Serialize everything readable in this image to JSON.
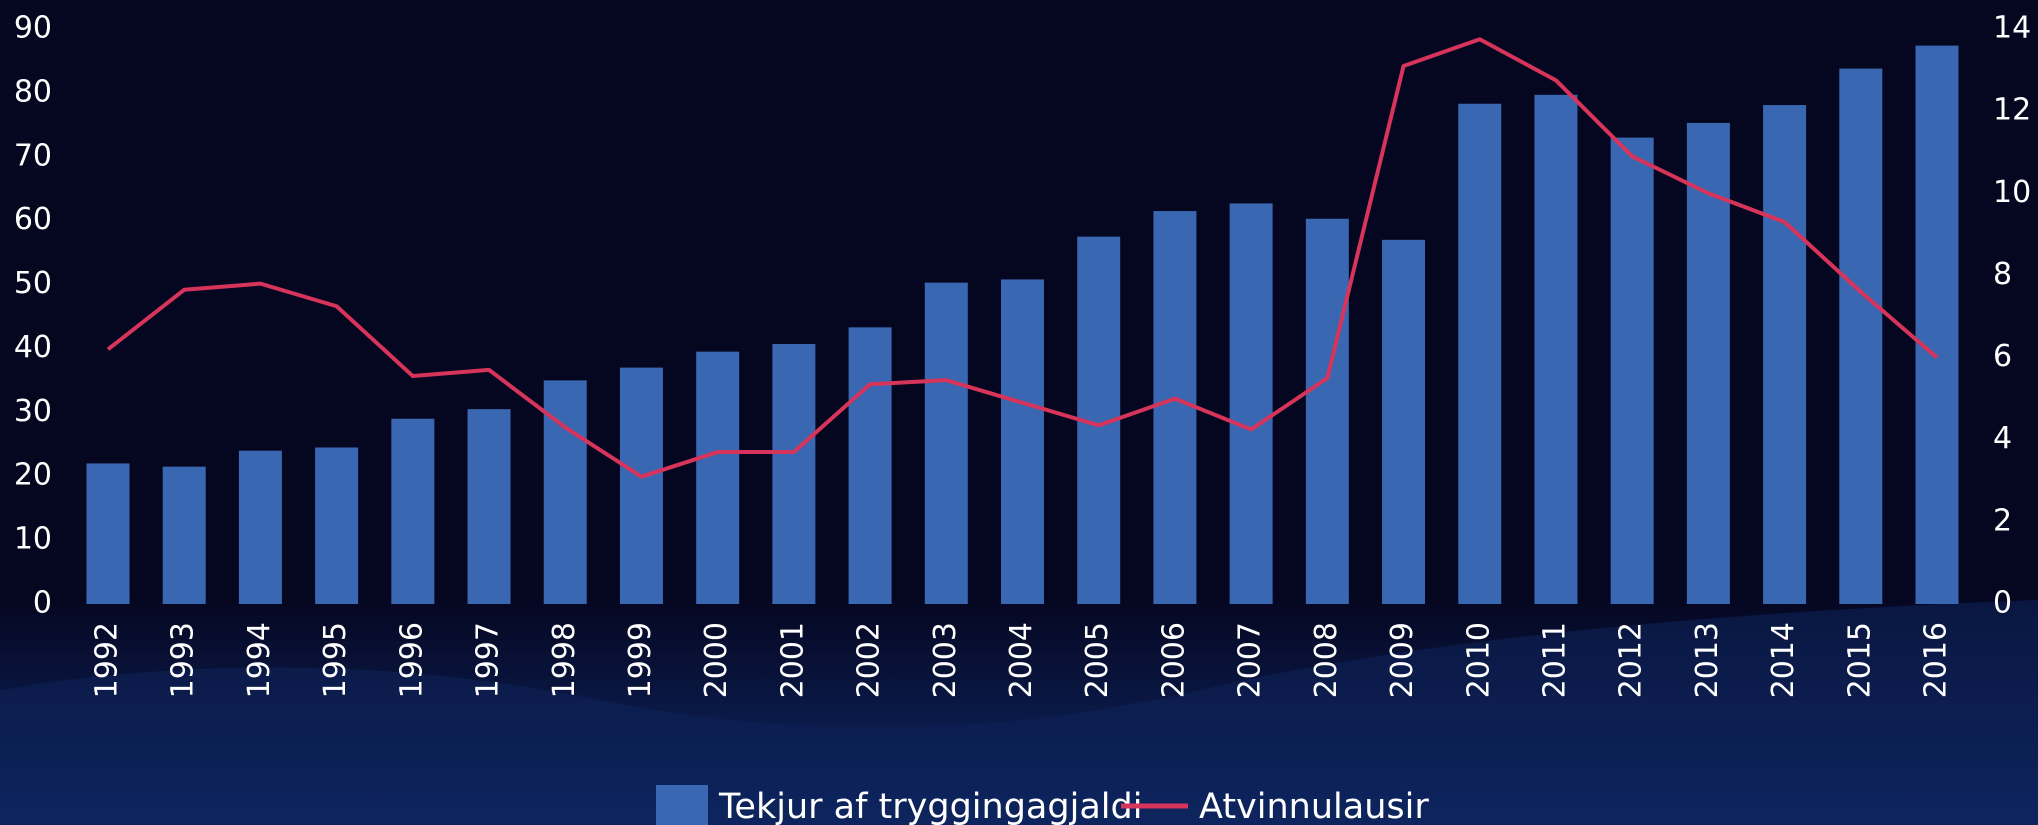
{
  "chart_data": {
    "type": "bar",
    "categories": [
      "1992",
      "1993",
      "1994",
      "1995",
      "1996",
      "1997",
      "1998",
      "1999",
      "2000",
      "2001",
      "2002",
      "2003",
      "2004",
      "2005",
      "2006",
      "2007",
      "2008",
      "2009",
      "2010",
      "2011",
      "2012",
      "2013",
      "2014",
      "2015",
      "2016"
    ],
    "series": [
      {
        "name": "Tekjur af tryggingagjaldi",
        "type": "bar",
        "color": "#3a67b2",
        "values": [
          22,
          21.5,
          24,
          24.5,
          29,
          30.5,
          35,
          37,
          39.5,
          40.7,
          43.3,
          50.3,
          50.8,
          57.5,
          61.5,
          62.7,
          60.3,
          57,
          78.3,
          79.7,
          73,
          75.3,
          78.1,
          83.8,
          87.4
        ]
      },
      {
        "name": "Atvinnulausir",
        "type": "line",
        "axis": "y2",
        "color": "#d6345a",
        "values": [
          6.2,
          7.65,
          7.8,
          7.25,
          5.55,
          5.7,
          4.3,
          3.1,
          3.7,
          3.7,
          5.35,
          5.45,
          4.9,
          4.35,
          5.0,
          4.25,
          5.5,
          13.1,
          13.75,
          12.75,
          10.9,
          10.0,
          9.3,
          7.6,
          6.0
        ]
      }
    ],
    "ylim": [
      0,
      90
    ],
    "yticks": [
      0,
      10,
      20,
      30,
      40,
      50,
      60,
      70,
      80,
      90
    ],
    "y2lim": [
      0,
      14
    ],
    "y2ticks": [
      0,
      2,
      4,
      6,
      8,
      10,
      12,
      14
    ],
    "legend": "bottom"
  }
}
